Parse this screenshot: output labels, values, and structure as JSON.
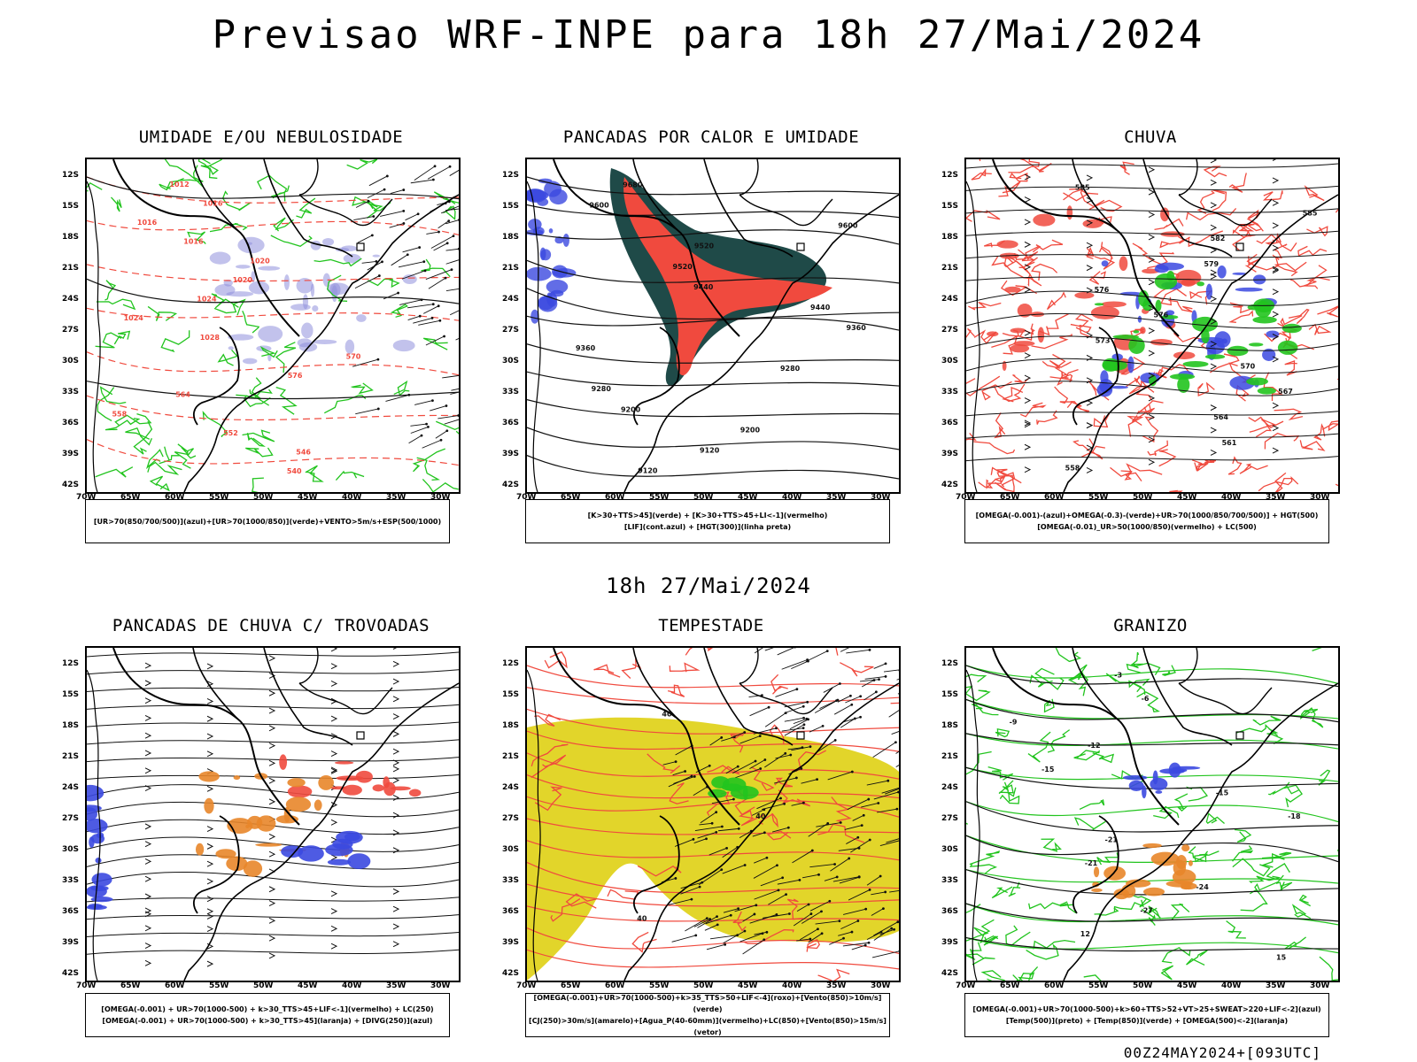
{
  "title": "Previsao WRF-INPE  para 18h 27/Mai/2024",
  "subtitle": "18h 27/Mai/2024",
  "footer": "00Z24MAY2024+[093UTC]",
  "lat_labels": [
    "12S",
    "15S",
    "18S",
    "21S",
    "24S",
    "27S",
    "30S",
    "33S",
    "36S",
    "39S",
    "42S"
  ],
  "lon_labels": [
    "70W",
    "65W",
    "60W",
    "55W",
    "50W",
    "45W",
    "40W",
    "35W",
    "30W"
  ],
  "colors": {
    "green": "#22c41e",
    "red": "#f04a3e",
    "blue": "#3b49e0",
    "orange": "#e8862a",
    "yellow": "#e2d52a",
    "teal": "#1f4a48",
    "purple": "#8f8fdc"
  },
  "panels": [
    {
      "title": "UMIDADE E/OU NEBULOSIDADE",
      "legend": [
        "[UR>70(850/700/500)](azul)+[UR>70(1000/850)](verde)+VENTO>5m/s+ESP(500/1000)"
      ],
      "contours": [
        "1012",
        "1016",
        "1016",
        "1016",
        "1020",
        "1020",
        "1024",
        "1024",
        "1028",
        "570",
        "576",
        "564",
        "558",
        "552",
        "546",
        "540"
      ]
    },
    {
      "title": "PANCADAS POR CALOR E UMIDADE",
      "legend": [
        "[K>30+TTS>45](verde) + [K>30+TTS>45+LI<-1](vermelho)",
        "[LIF](cont.azul) + [HGT(300)](linha preta)"
      ],
      "contours": [
        "9680",
        "9600",
        "9600",
        "9520",
        "9520",
        "9440",
        "9440",
        "9360",
        "9360",
        "9280",
        "9280",
        "9200",
        "9200",
        "9120",
        "9120"
      ]
    },
    {
      "title": "CHUVA",
      "legend": [
        "[OMEGA(-0.001)-(azul)+OMEGA(-0.3)-(verde)+UR>70(1000/850/700/500)] + HGT(500)",
        "[OMEGA(-0.01)_UR>50(1000/850)(vermelho) + LC(500)"
      ],
      "contours": [
        "585",
        "585",
        "582",
        "579",
        "576",
        "576",
        "573",
        "570",
        "567",
        "564",
        "561",
        "558"
      ]
    },
    {
      "title": "PANCADAS DE CHUVA C/ TROVOADAS",
      "legend": [
        "[OMEGA(-0.001) + UR>70(1000-500) + k>30_TTS>45+LIF<-1](vermelho) + LC(250)",
        "[OMEGA(-0.001) + UR>70(1000-500) + k>30_TTS>45](laranja) + [DIVG(250)](azul)"
      ],
      "contours": []
    },
    {
      "title": "TEMPESTADE",
      "legend": [
        "[OMEGA(-0.001)+UR>70(1000-500)+k>35_TTS>50+LIF<-4](roxo)+[Vento(850)>10m/s](verde)",
        "[CJ(250)>30m/s](amarelo)+[Agua_P(40-60mm)](vermelho)+LC(850)+[Vento(850)>15m/s](vetor)"
      ],
      "contours": [
        "40",
        "40",
        "40"
      ]
    },
    {
      "title": "GRANIZO",
      "legend": [
        "[OMEGA(-0.001)+UR>70(1000-500)+k>60+TTS>52+VT>25+SWEAT>220+LIF<-2](azul)",
        "[Temp(500)](preto) + [Temp(850)](verde) + [OMEGA(500)<-2](laranja)"
      ],
      "contours": [
        "-3",
        "-6",
        "-9",
        "-12",
        "-15",
        "-15",
        "-18",
        "-21",
        "-21",
        "-24",
        "-27",
        "12",
        "15"
      ]
    }
  ]
}
